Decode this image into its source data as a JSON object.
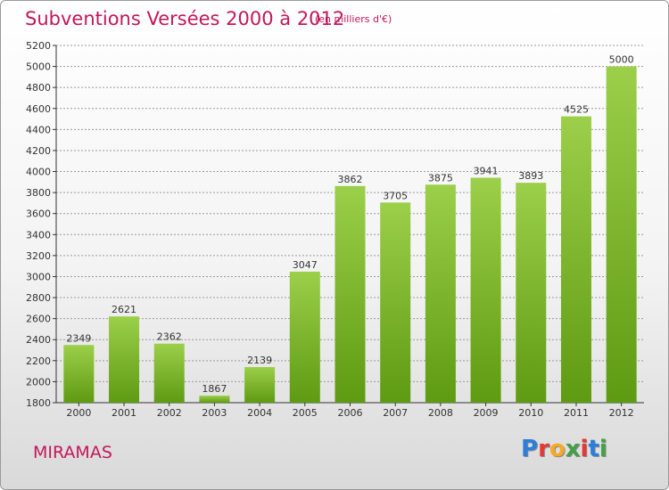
{
  "page": {
    "title": "Subventions Versées 2000 à 2012",
    "subtitle": "(en milliers d'€)",
    "city": "MIRAMAS",
    "logo_text": "Proxiti",
    "logo_colors": [
      "#2b7fd8",
      "#e53935",
      "#f9a825",
      "#43a047",
      "#e53935",
      "#2b7fd8",
      "#43a047"
    ]
  },
  "chart_data": {
    "type": "bar",
    "title": "Subventions Versées 2000 à 2012",
    "subtitle": "(en milliers d'€)",
    "categories": [
      "2000",
      "2001",
      "2002",
      "2003",
      "2004",
      "2005",
      "2006",
      "2007",
      "2008",
      "2009",
      "2010",
      "2011",
      "2012"
    ],
    "values": [
      2349,
      2621,
      2362,
      1867,
      2139,
      3047,
      3862,
      3705,
      3875,
      3941,
      3893,
      4525,
      5000
    ],
    "ylim": [
      1800,
      5200
    ],
    "yticks": [
      1800,
      2000,
      2200,
      2400,
      2600,
      2800,
      3000,
      3200,
      3400,
      3600,
      3800,
      4000,
      4200,
      4400,
      4600,
      4800,
      5000,
      5200
    ],
    "grid": true,
    "colors": {
      "bar_top": "#9ccf4a",
      "bar_bottom": "#5e9a12",
      "grid": "#9a9a9a",
      "axis": "#333333"
    }
  }
}
